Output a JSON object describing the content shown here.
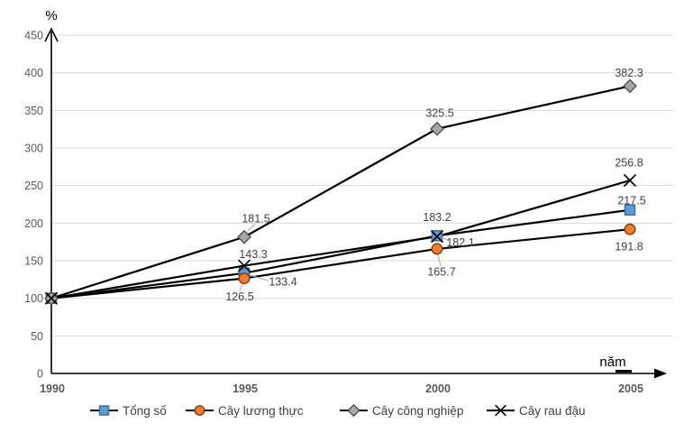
{
  "page": {
    "background": "#ffffff"
  },
  "chart_data": {
    "type": "line",
    "title": "",
    "y_axis_label": "%",
    "x_axis_label": "năm",
    "categories": [
      "1990",
      "1995",
      "2000",
      "2005"
    ],
    "y_ticks": [
      0,
      50,
      100,
      150,
      200,
      250,
      300,
      350,
      400,
      450
    ],
    "ylim": [
      0,
      450
    ],
    "grid": true,
    "grid_color": "#d9d9d9",
    "axis_color": "#000000",
    "line_color": "#000000",
    "tick_label_color": "#595959",
    "data_label_color": "#404040",
    "legend_text_color": "#404040",
    "legend_position": "bottom",
    "series": [
      {
        "name": "Tổng số",
        "marker": "square",
        "marker_fill": "#5b9bd5",
        "marker_stroke": "#41719c",
        "values": [
          100,
          133.4,
          183.2,
          217.5
        ]
      },
      {
        "name": "Cây lương thực",
        "marker": "circle",
        "marker_fill": "#ed7d31",
        "marker_stroke": "#843c0c",
        "values": [
          100,
          126.5,
          165.7,
          191.8
        ]
      },
      {
        "name": "Cây công nghiệp",
        "marker": "diamond",
        "marker_fill": "#a6a6a6",
        "marker_stroke": "#404040",
        "values": [
          100,
          181.5,
          325.5,
          382.3
        ]
      },
      {
        "name": "Cây rau đậu",
        "marker": "x",
        "marker_fill": "#000000",
        "marker_stroke": "#000000",
        "values": [
          100,
          143.3,
          182.1,
          256.8
        ]
      }
    ]
  }
}
